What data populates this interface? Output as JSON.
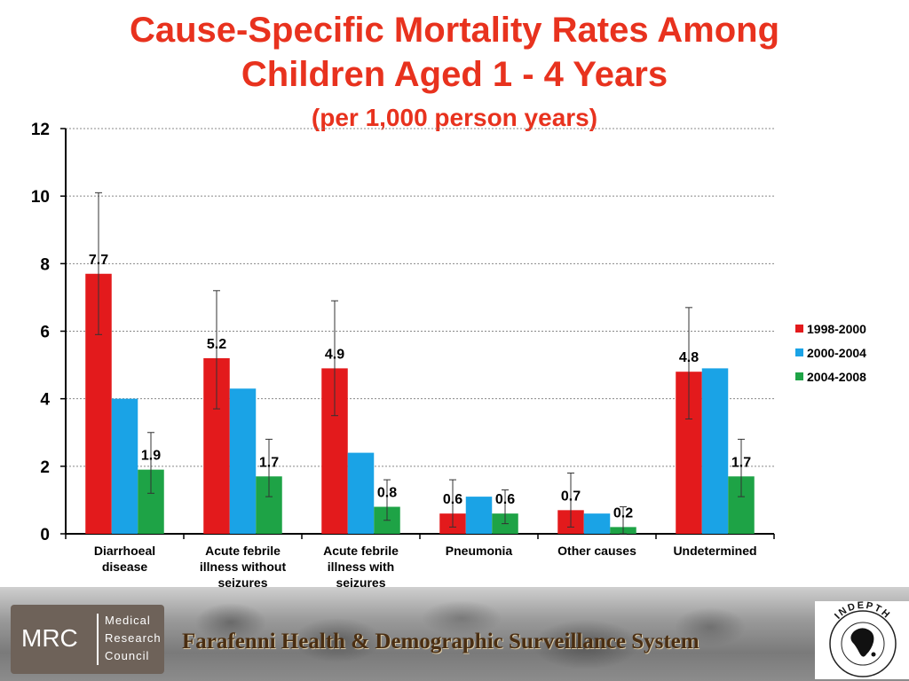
{
  "title": {
    "line1": "Cause-Specific Mortality Rates Among",
    "line2": "Children Aged 1 - 4 Years",
    "subtitle": "(per 1,000 person years)"
  },
  "colors": {
    "title": "#e8321e",
    "series": [
      "#e31a1c",
      "#1aa3e6",
      "#1ea346"
    ]
  },
  "chart_data": {
    "type": "bar",
    "title": "Cause-Specific Mortality Rates Among Children Aged 1 - 4 Years",
    "subtitle": "(per 1,000 person years)",
    "xlabel": "",
    "ylabel": "",
    "ylim": [
      0,
      12
    ],
    "yticks": [
      0,
      2,
      4,
      6,
      8,
      10,
      12
    ],
    "grid": true,
    "legend_position": "right",
    "categories": [
      [
        "Diarrhoeal",
        "disease"
      ],
      [
        "Acute febrile",
        "illness without",
        "seizures"
      ],
      [
        "Acute febrile",
        "illness with",
        "seizures"
      ],
      [
        "Pneumonia"
      ],
      [
        "Other causes"
      ],
      [
        "Undetermined"
      ]
    ],
    "series": [
      {
        "name": "1998-2000",
        "values": [
          7.7,
          5.2,
          4.9,
          0.6,
          0.7,
          4.8
        ],
        "labels": [
          "7.7",
          "5.2",
          "4.9",
          "0.6",
          "0.7",
          "4.8"
        ],
        "error_low": [
          5.9,
          3.7,
          3.5,
          0.2,
          0.2,
          3.4
        ],
        "error_high": [
          10.1,
          7.2,
          6.9,
          1.6,
          1.8,
          6.7
        ]
      },
      {
        "name": "2000-2004",
        "values": [
          4.0,
          4.3,
          2.4,
          1.1,
          0.6,
          4.9
        ],
        "labels": [
          "",
          "",
          "",
          "",
          "",
          ""
        ],
        "error_low": [
          null,
          null,
          null,
          null,
          null,
          null
        ],
        "error_high": [
          null,
          null,
          null,
          null,
          null,
          null
        ]
      },
      {
        "name": "2004-2008",
        "values": [
          1.9,
          1.7,
          0.8,
          0.6,
          0.2,
          1.7
        ],
        "labels": [
          "1.9",
          "1.7",
          "0.8",
          "0.6",
          "0.2",
          "1.7"
        ],
        "error_low": [
          1.2,
          1.1,
          0.4,
          0.3,
          0.0,
          1.1
        ],
        "error_high": [
          3.0,
          2.8,
          1.6,
          1.3,
          0.8,
          2.8
        ]
      }
    ]
  },
  "footer": {
    "mrc_abbr": "MRC",
    "mrc_name": [
      "Medical",
      "Research",
      "Council"
    ],
    "text": "Farafenni Health & Demographic Surveillance System",
    "indepth_text": "INDEPTH"
  }
}
